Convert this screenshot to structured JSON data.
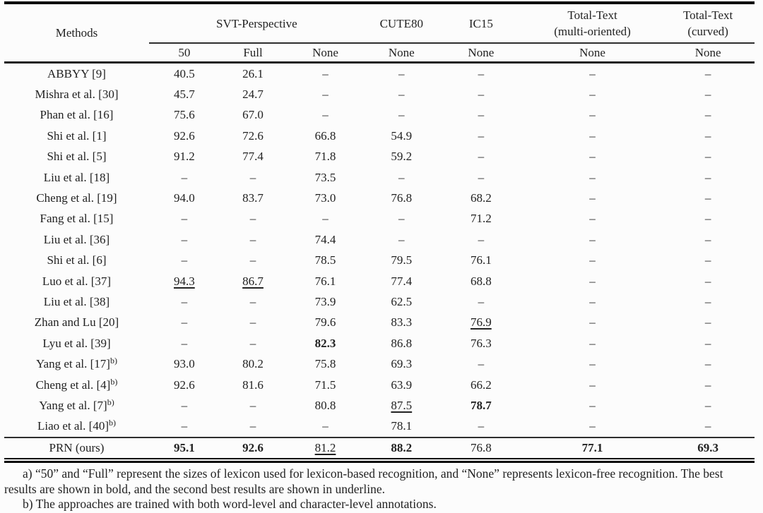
{
  "table": {
    "header": {
      "methods": "Methods",
      "groups": [
        {
          "label": "SVT-Perspective"
        },
        {
          "label": "CUTE80"
        },
        {
          "label": "IC15"
        },
        {
          "line1": "Total-Text",
          "line2": "(multi-oriented)"
        },
        {
          "line1": "Total-Text",
          "line2": "(curved)"
        }
      ],
      "lexicons": [
        "50",
        "Full",
        "None",
        "None",
        "None",
        "None",
        "None"
      ]
    },
    "rows": [
      {
        "method": "ABBYY [9]",
        "sup": "",
        "values": [
          "40.5",
          "26.1",
          "–",
          "–",
          "–",
          "–",
          "–"
        ]
      },
      {
        "method": "Mishra et al. [30]",
        "sup": "",
        "values": [
          "45.7",
          "24.7",
          "–",
          "–",
          "–",
          "–",
          "–"
        ]
      },
      {
        "method": "Phan et al. [16]",
        "sup": "",
        "values": [
          "75.6",
          "67.0",
          "–",
          "–",
          "–",
          "–",
          "–"
        ]
      },
      {
        "method": "Shi et al. [1]",
        "sup": "",
        "values": [
          "92.6",
          "72.6",
          "66.8",
          "54.9",
          "–",
          "–",
          "–"
        ]
      },
      {
        "method": "Shi et al. [5]",
        "sup": "",
        "values": [
          "91.2",
          "77.4",
          "71.8",
          "59.2",
          "–",
          "–",
          "–"
        ]
      },
      {
        "method": "Liu et al. [18]",
        "sup": "",
        "values": [
          "–",
          "–",
          "73.5",
          "–",
          "–",
          "–",
          "–"
        ]
      },
      {
        "method": "Cheng et al. [19]",
        "sup": "",
        "values": [
          "94.0",
          "83.7",
          "73.0",
          "76.8",
          "68.2",
          "–",
          "–"
        ]
      },
      {
        "method": "Fang et al. [15]",
        "sup": "",
        "values": [
          "–",
          "–",
          "–",
          "–",
          "71.2",
          "–",
          "–"
        ]
      },
      {
        "method": "Liu et al. [36]",
        "sup": "",
        "values": [
          "–",
          "–",
          "74.4",
          "–",
          "–",
          "–",
          "–"
        ]
      },
      {
        "method": "Shi et al. [6]",
        "sup": "",
        "values": [
          "–",
          "–",
          "78.5",
          "79.5",
          "76.1",
          "–",
          "–"
        ]
      },
      {
        "method": "Luo et al. [37]",
        "sup": "",
        "values": [
          {
            "v": "94.3",
            "style": "underline"
          },
          {
            "v": "86.7",
            "style": "underline"
          },
          "76.1",
          "77.4",
          "68.8",
          "–",
          "–"
        ]
      },
      {
        "method": "Liu et al. [38]",
        "sup": "",
        "values": [
          "–",
          "–",
          "73.9",
          "62.5",
          "–",
          "–",
          "–"
        ]
      },
      {
        "method": "Zhan and Lu [20]",
        "sup": "",
        "values": [
          "–",
          "–",
          "79.6",
          "83.3",
          {
            "v": "76.9",
            "style": "underline"
          },
          "–",
          "–"
        ]
      },
      {
        "method": "Lyu et al. [39]",
        "sup": "",
        "values": [
          "–",
          "–",
          {
            "v": "82.3",
            "style": "bold"
          },
          "86.8",
          "76.3",
          "–",
          "–"
        ]
      },
      {
        "method": "Yang et al. [17]",
        "sup": "b)",
        "values": [
          "93.0",
          "80.2",
          "75.8",
          "69.3",
          "–",
          "–",
          "–"
        ]
      },
      {
        "method": "Cheng et al. [4]",
        "sup": "b)",
        "values": [
          "92.6",
          "81.6",
          "71.5",
          "63.9",
          "66.2",
          "–",
          "–"
        ]
      },
      {
        "method": "Yang et al. [7]",
        "sup": "b)",
        "values": [
          "–",
          "–",
          "80.8",
          {
            "v": "87.5",
            "style": "underline"
          },
          {
            "v": "78.7",
            "style": "bold"
          },
          "–",
          "–"
        ]
      },
      {
        "method": "Liao et al. [40]",
        "sup": "b)",
        "values": [
          "–",
          "–",
          "–",
          "78.1",
          "–",
          "–",
          "–"
        ]
      }
    ],
    "final_row": {
      "method": "PRN (ours)",
      "sup": "",
      "values": [
        {
          "v": "95.1",
          "style": "bold"
        },
        {
          "v": "92.6",
          "style": "bold"
        },
        {
          "v": "81.2",
          "style": "underline"
        },
        {
          "v": "88.2",
          "style": "bold"
        },
        "76.8",
        {
          "v": "77.1",
          "style": "bold"
        },
        {
          "v": "69.3",
          "style": "bold"
        }
      ]
    }
  },
  "footnotes": {
    "a": "a) “50” and “Full” represent the sizes of lexicon used for lexicon-based recognition, and “None” represents lexicon-free recognition. The best results are shown in bold, and the second best results are shown in underline.",
    "b": "b) The approaches are trained with both word-level and character-level annotations."
  }
}
